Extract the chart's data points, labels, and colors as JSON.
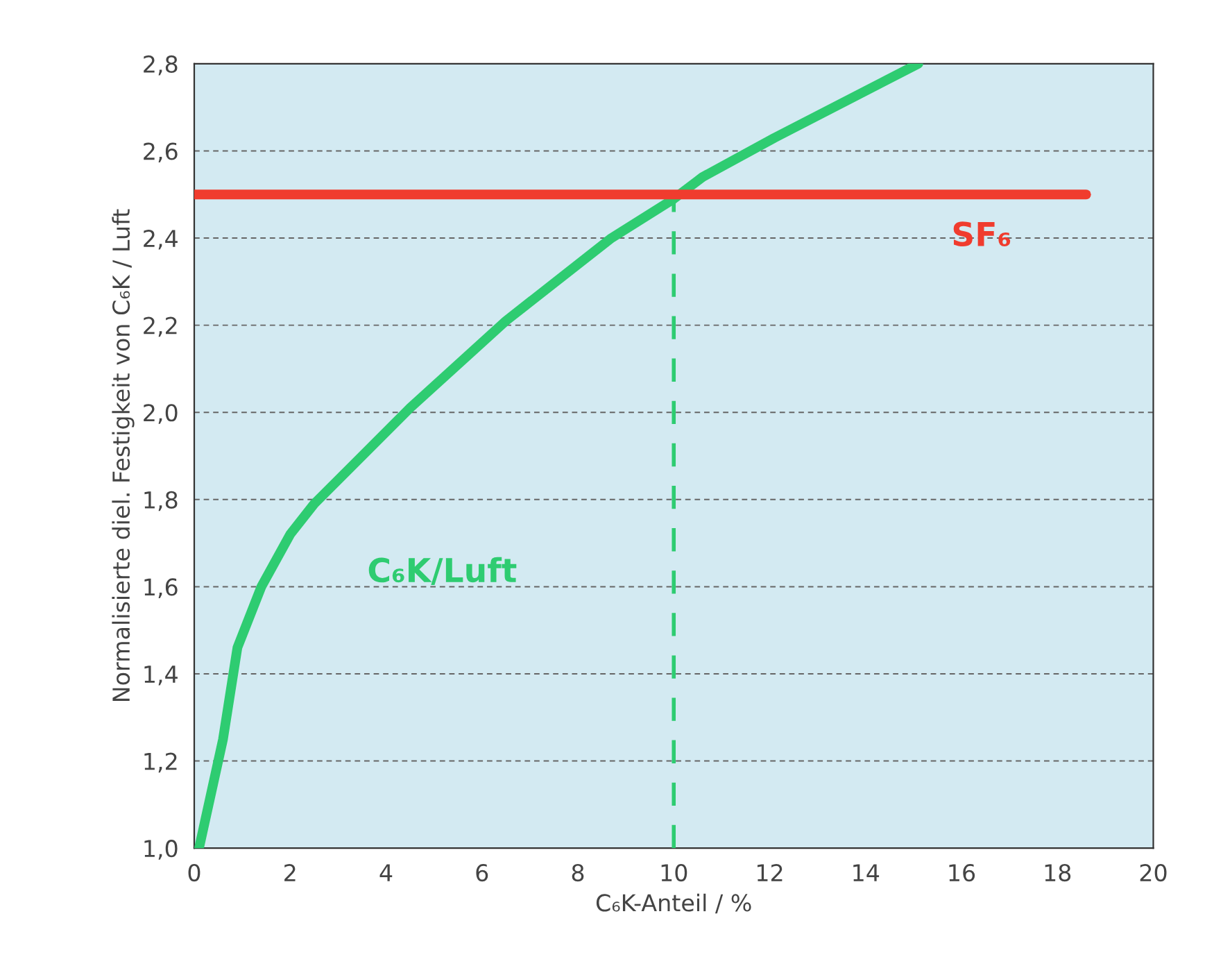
{
  "chart_data": {
    "type": "line",
    "xlabel": "C₆K-Anteil / %",
    "ylabel": "Normalisierte diel. Festigkeit von C₆K / Luft",
    "xlim": [
      0,
      20
    ],
    "xticks": [
      0,
      2,
      4,
      6,
      8,
      10,
      12,
      14,
      16,
      18,
      20
    ],
    "ylim": [
      1.0,
      2.8
    ],
    "yticks": [
      {
        "value": 1.0,
        "label": "1,0"
      },
      {
        "value": 1.2,
        "label": "1,2"
      },
      {
        "value": 1.4,
        "label": "1,4"
      },
      {
        "value": 1.6,
        "label": "1,6"
      },
      {
        "value": 1.8,
        "label": "1,8"
      },
      {
        "value": 2.0,
        "label": "2,0"
      },
      {
        "value": 2.2,
        "label": "2,2"
      },
      {
        "value": 2.4,
        "label": "2,4"
      },
      {
        "value": 2.6,
        "label": "2,6"
      },
      {
        "value": 2.8,
        "label": "2,8"
      }
    ],
    "grid": "y",
    "legend": false,
    "marker": "none",
    "series": [
      {
        "name": "C₆K/Luft",
        "color": "#2ecc71",
        "line_style": "solid",
        "x": [
          0.1,
          0.6,
          0.9,
          1.4,
          2.0,
          2.5,
          4.5,
          6.5,
          8.7,
          10.0,
          10.6,
          12.1,
          15.1
        ],
        "values": [
          1.0,
          1.25,
          1.46,
          1.6,
          1.72,
          1.79,
          2.01,
          2.21,
          2.4,
          2.49,
          2.54,
          2.63,
          2.8
        ]
      },
      {
        "name": "SF₆",
        "color": "#f03c2e",
        "line_style": "solid",
        "x": [
          0,
          18.6
        ],
        "values": [
          2.5,
          2.5
        ]
      },
      {
        "color": "#2ecc71",
        "line_style": "dashed",
        "x": [
          10,
          10
        ],
        "values": [
          1.0,
          2.5
        ]
      }
    ]
  }
}
